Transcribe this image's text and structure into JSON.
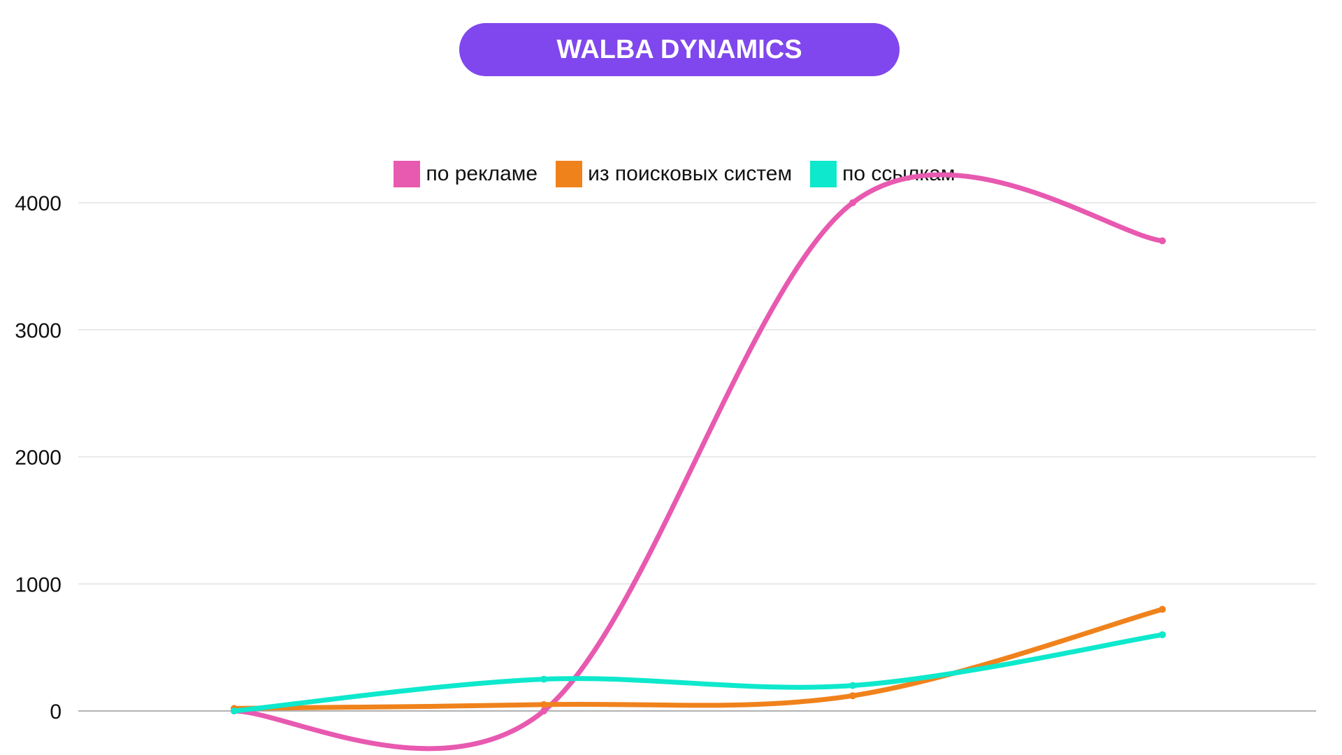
{
  "title": "WALBA DYNAMICS",
  "colors": {
    "title_bg": "#7f47ed"
  },
  "chart_data": {
    "type": "line",
    "title": "WALBA DYNAMICS",
    "xlabel": "",
    "ylabel": "",
    "categories": [
      "",
      "",
      "",
      ""
    ],
    "ylim": [
      0,
      4000
    ],
    "yticks": [
      "0",
      "1000",
      "2000",
      "3000",
      "4000"
    ],
    "grid": true,
    "legend_position": "top",
    "smooth": true,
    "series": [
      {
        "name": "по рекламе",
        "color": "#e859b0",
        "values": [
          0,
          0,
          4000,
          3700
        ]
      },
      {
        "name": "из поисковых систем",
        "color": "#f0821c",
        "values": [
          20,
          50,
          120,
          800
        ]
      },
      {
        "name": "по ссылкам",
        "color": "#0ee8cc",
        "values": [
          0,
          250,
          200,
          600
        ]
      }
    ]
  }
}
